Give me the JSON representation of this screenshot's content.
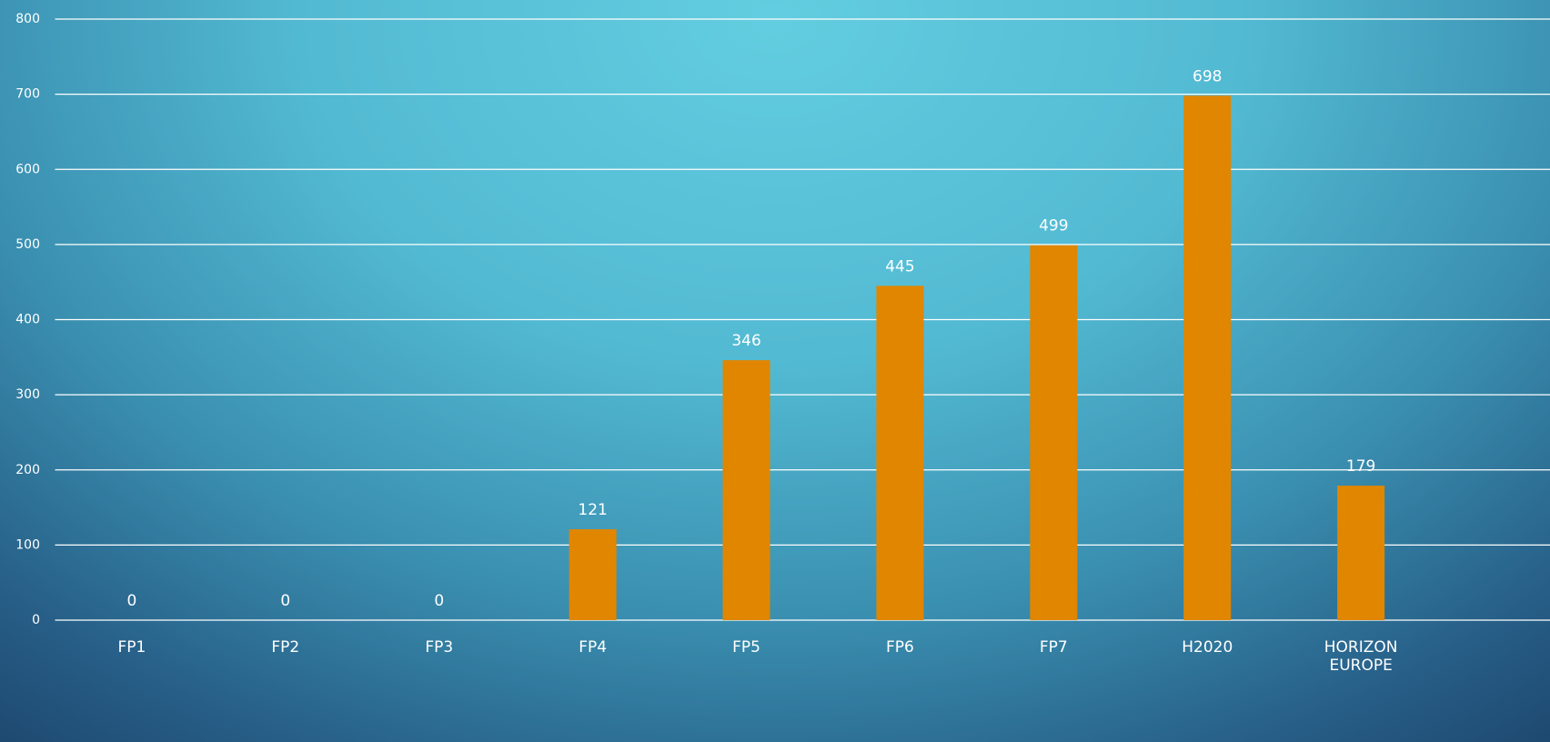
{
  "chart_data": {
    "type": "bar",
    "categories": [
      "FP1",
      "FP2",
      "FP3",
      "FP4",
      "FP5",
      "FP6",
      "FP7",
      "H2020",
      "HORIZON EUROPE"
    ],
    "values": [
      0,
      0,
      0,
      121,
      346,
      445,
      499,
      698,
      179
    ],
    "color": "#e08600",
    "ylim": [
      0,
      800
    ],
    "yticks": [
      0,
      100,
      200,
      300,
      400,
      500,
      600,
      700,
      800
    ],
    "grid": true
  }
}
